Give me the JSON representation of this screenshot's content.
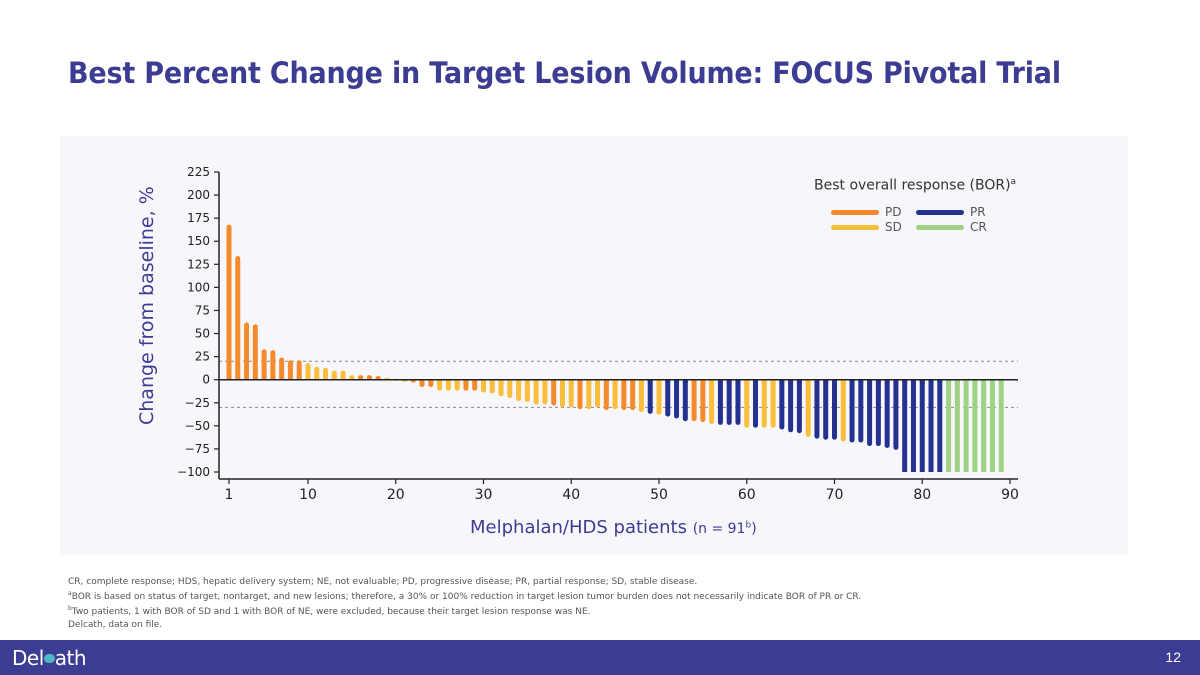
{
  "slide": {
    "title": "Best Percent Change in Target Lesion Volume: FOCUS Pivotal Trial",
    "page_number": "12",
    "logo_text_left": "Del",
    "logo_text_right": "ath",
    "footnotes": [
      "CR, complete response; HDS, hepatic delivery system; NE, not evaluable; PD, progressive disease; PR, partial response; SD, stable disease.",
      {
        "sup": "a",
        "text": "BOR is based on status of target, nontarget, and new lesions; therefore, a 30% or 100% reduction in target lesion tumor burden does not necessarily indicate BOR of PR or CR."
      },
      {
        "sup": "b",
        "text": "Two patients, 1 with BOR of SD and 1 with BOR of NE, were excluded, because their target lesion response was NE."
      },
      "Delcath, data on file."
    ]
  },
  "chart_data": {
    "type": "bar",
    "title": "Best Percent Change in Target Lesion Volume: FOCUS Pivotal Trial",
    "ylabel": "Change from baseline, %",
    "xlabel": "Melphalan/HDS patients",
    "xlabel_suffix": "(n = 91",
    "xlabel_suffix_sup": "b",
    "xlabel_suffix_end": ")",
    "ylim": [
      -100,
      225
    ],
    "yticks": [
      225,
      200,
      175,
      150,
      125,
      100,
      75,
      50,
      25,
      0,
      -25,
      -50,
      -75,
      -100
    ],
    "ytick_labels": [
      "225",
      "200",
      "175",
      "150",
      "125",
      "100",
      "75",
      "50",
      "25",
      "0",
      "−25",
      "−50",
      "−75",
      "−100"
    ],
    "xlim": [
      1,
      90
    ],
    "xticks": [
      1,
      10,
      20,
      30,
      40,
      50,
      60,
      70,
      80,
      90
    ],
    "reference_lines": [
      20,
      -30
    ],
    "legend": {
      "title": "Best overall response (BOR)",
      "title_sup": "a",
      "placement": "top-right",
      "entries": [
        {
          "key": "PD",
          "label": "PD",
          "color": "#f58a2d"
        },
        {
          "key": "PR",
          "label": "PR",
          "color": "#24318f"
        },
        {
          "key": "SD",
          "label": "SD",
          "color": "#fbbd3c"
        },
        {
          "key": "CR",
          "label": "CR",
          "color": "#9fd383"
        }
      ]
    },
    "colors": {
      "PD": "#f58a2d",
      "SD": "#fbbd3c",
      "PR": "#24318f",
      "CR": "#9fd383"
    },
    "bars": [
      {
        "x": 1,
        "value": 168,
        "bor": "PD"
      },
      {
        "x": 2,
        "value": 134,
        "bor": "PD"
      },
      {
        "x": 3,
        "value": 62,
        "bor": "PD"
      },
      {
        "x": 4,
        "value": 60,
        "bor": "PD"
      },
      {
        "x": 5,
        "value": 33,
        "bor": "PD"
      },
      {
        "x": 6,
        "value": 32,
        "bor": "PD"
      },
      {
        "x": 7,
        "value": 24,
        "bor": "PD"
      },
      {
        "x": 8,
        "value": 21,
        "bor": "PD"
      },
      {
        "x": 9,
        "value": 21,
        "bor": "PD"
      },
      {
        "x": 10,
        "value": 18,
        "bor": "SD"
      },
      {
        "x": 11,
        "value": 14,
        "bor": "SD"
      },
      {
        "x": 12,
        "value": 13,
        "bor": "SD"
      },
      {
        "x": 13,
        "value": 10,
        "bor": "SD"
      },
      {
        "x": 14,
        "value": 10,
        "bor": "SD"
      },
      {
        "x": 15,
        "value": 5,
        "bor": "SD"
      },
      {
        "x": 16,
        "value": 5,
        "bor": "PD"
      },
      {
        "x": 17,
        "value": 5,
        "bor": "PD"
      },
      {
        "x": 18,
        "value": 4,
        "bor": "PD"
      },
      {
        "x": 19,
        "value": 2,
        "bor": "SD"
      },
      {
        "x": 20,
        "value": 1,
        "bor": "SD"
      },
      {
        "x": 21,
        "value": -2,
        "bor": "SD"
      },
      {
        "x": 22,
        "value": -3,
        "bor": "PD"
      },
      {
        "x": 23,
        "value": -8,
        "bor": "PD"
      },
      {
        "x": 24,
        "value": -8,
        "bor": "PD"
      },
      {
        "x": 25,
        "value": -12,
        "bor": "SD"
      },
      {
        "x": 26,
        "value": -12,
        "bor": "SD"
      },
      {
        "x": 27,
        "value": -12,
        "bor": "SD"
      },
      {
        "x": 28,
        "value": -12,
        "bor": "PD"
      },
      {
        "x": 29,
        "value": -12,
        "bor": "PD"
      },
      {
        "x": 30,
        "value": -14,
        "bor": "SD"
      },
      {
        "x": 31,
        "value": -15,
        "bor": "SD"
      },
      {
        "x": 32,
        "value": -18,
        "bor": "SD"
      },
      {
        "x": 33,
        "value": -20,
        "bor": "SD"
      },
      {
        "x": 34,
        "value": -23,
        "bor": "SD"
      },
      {
        "x": 35,
        "value": -24,
        "bor": "SD"
      },
      {
        "x": 36,
        "value": -27,
        "bor": "SD"
      },
      {
        "x": 37,
        "value": -27,
        "bor": "SD"
      },
      {
        "x": 38,
        "value": -28,
        "bor": "PD"
      },
      {
        "x": 39,
        "value": -30,
        "bor": "SD"
      },
      {
        "x": 40,
        "value": -30,
        "bor": "SD"
      },
      {
        "x": 41,
        "value": -32,
        "bor": "PD"
      },
      {
        "x": 42,
        "value": -32,
        "bor": "SD"
      },
      {
        "x": 43,
        "value": -30,
        "bor": "SD"
      },
      {
        "x": 44,
        "value": -33,
        "bor": "PD"
      },
      {
        "x": 45,
        "value": -32,
        "bor": "SD"
      },
      {
        "x": 46,
        "value": -33,
        "bor": "PD"
      },
      {
        "x": 47,
        "value": -33,
        "bor": "PD"
      },
      {
        "x": 48,
        "value": -35,
        "bor": "SD"
      },
      {
        "x": 49,
        "value": -37,
        "bor": "PR"
      },
      {
        "x": 50,
        "value": -38,
        "bor": "SD"
      },
      {
        "x": 51,
        "value": -40,
        "bor": "PR"
      },
      {
        "x": 52,
        "value": -42,
        "bor": "PR"
      },
      {
        "x": 53,
        "value": -45,
        "bor": "PR"
      },
      {
        "x": 54,
        "value": -45,
        "bor": "PD"
      },
      {
        "x": 55,
        "value": -46,
        "bor": "PD"
      },
      {
        "x": 56,
        "value": -48,
        "bor": "SD"
      },
      {
        "x": 57,
        "value": -49,
        "bor": "PR"
      },
      {
        "x": 58,
        "value": -49,
        "bor": "PR"
      },
      {
        "x": 59,
        "value": -49,
        "bor": "PR"
      },
      {
        "x": 60,
        "value": -52,
        "bor": "SD"
      },
      {
        "x": 61,
        "value": -52,
        "bor": "PR"
      },
      {
        "x": 62,
        "value": -52,
        "bor": "SD"
      },
      {
        "x": 63,
        "value": -52,
        "bor": "SD"
      },
      {
        "x": 64,
        "value": -54,
        "bor": "PR"
      },
      {
        "x": 65,
        "value": -57,
        "bor": "PR"
      },
      {
        "x": 66,
        "value": -58,
        "bor": "PR"
      },
      {
        "x": 67,
        "value": -62,
        "bor": "SD"
      },
      {
        "x": 68,
        "value": -64,
        "bor": "PR"
      },
      {
        "x": 69,
        "value": -65,
        "bor": "PR"
      },
      {
        "x": 70,
        "value": -65,
        "bor": "PR"
      },
      {
        "x": 71,
        "value": -67,
        "bor": "SD"
      },
      {
        "x": 72,
        "value": -68,
        "bor": "PR"
      },
      {
        "x": 73,
        "value": -68,
        "bor": "PR"
      },
      {
        "x": 74,
        "value": -72,
        "bor": "PR"
      },
      {
        "x": 75,
        "value": -72,
        "bor": "PR"
      },
      {
        "x": 76,
        "value": -74,
        "bor": "PR"
      },
      {
        "x": 77,
        "value": -76,
        "bor": "PR"
      },
      {
        "x": 78,
        "value": -100,
        "bor": "PR"
      },
      {
        "x": 79,
        "value": -100,
        "bor": "PR"
      },
      {
        "x": 80,
        "value": -100,
        "bor": "PR"
      },
      {
        "x": 81,
        "value": -100,
        "bor": "PR"
      },
      {
        "x": 82,
        "value": -100,
        "bor": "PR"
      },
      {
        "x": 83,
        "value": -100,
        "bor": "CR"
      },
      {
        "x": 84,
        "value": -100,
        "bor": "CR"
      },
      {
        "x": 85,
        "value": -100,
        "bor": "CR"
      },
      {
        "x": 86,
        "value": -100,
        "bor": "CR"
      },
      {
        "x": 87,
        "value": -100,
        "bor": "CR"
      },
      {
        "x": 88,
        "value": -100,
        "bor": "CR"
      },
      {
        "x": 89,
        "value": -100,
        "bor": "CR"
      }
    ]
  }
}
